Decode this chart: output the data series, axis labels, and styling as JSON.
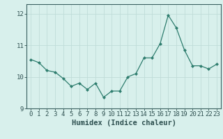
{
  "x": [
    0,
    1,
    2,
    3,
    4,
    5,
    6,
    7,
    8,
    9,
    10,
    11,
    12,
    13,
    14,
    15,
    16,
    17,
    18,
    19,
    20,
    21,
    22,
    23
  ],
  "y": [
    10.55,
    10.45,
    10.2,
    10.15,
    9.95,
    9.7,
    9.8,
    9.6,
    9.8,
    9.35,
    9.55,
    9.55,
    10.0,
    10.1,
    10.6,
    10.6,
    11.05,
    11.95,
    11.55,
    10.85,
    10.35,
    10.35,
    10.25,
    10.4
  ],
  "line_color": "#2e7d6e",
  "marker": "D",
  "marker_size": 2,
  "bg_color": "#d8f0ec",
  "grid_color": "#c0dcd8",
  "xlabel": "Humidex (Indice chaleur)",
  "ylim": [
    9.0,
    12.3
  ],
  "xlim": [
    -0.5,
    23.5
  ],
  "yticks": [
    9,
    10,
    11,
    12
  ],
  "xticks": [
    0,
    1,
    2,
    3,
    4,
    5,
    6,
    7,
    8,
    9,
    10,
    11,
    12,
    13,
    14,
    15,
    16,
    17,
    18,
    19,
    20,
    21,
    22,
    23
  ],
  "xlabel_fontsize": 7.5,
  "tick_fontsize": 6.5,
  "tick_color": "#2e5050",
  "spine_color": "#3a6060"
}
